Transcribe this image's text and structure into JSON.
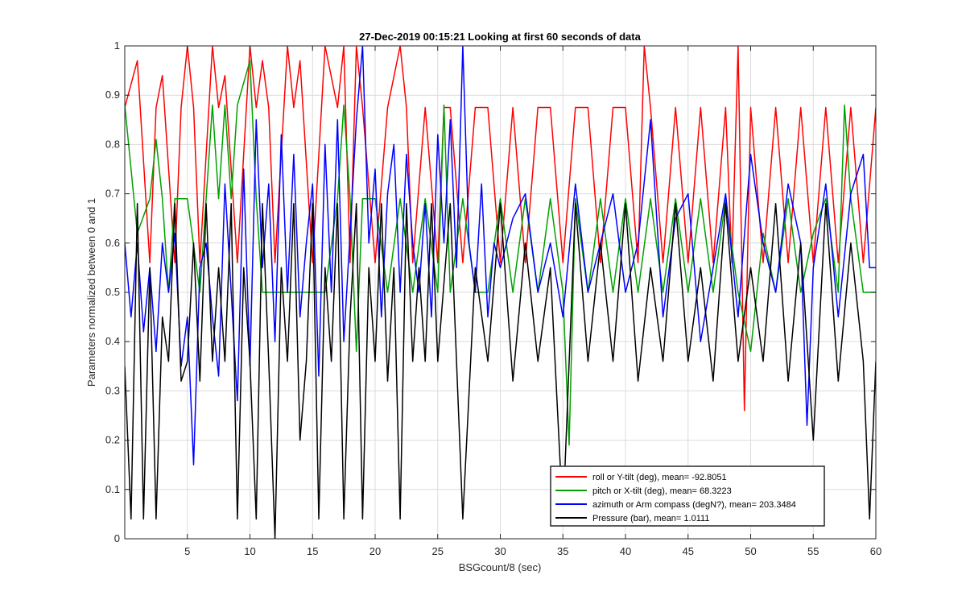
{
  "chart_data": {
    "type": "line",
    "title": "27-Dec-2019 00:15:21 Looking at first 60 seconds of data",
    "xlabel": "BSGcount/8 (sec)",
    "ylabel": "Parameters normalized between 0 and 1",
    "xlim": [
      0,
      60
    ],
    "ylim": [
      0,
      1
    ],
    "xticks": [
      5,
      10,
      15,
      20,
      25,
      30,
      35,
      40,
      45,
      50,
      55,
      60
    ],
    "yticks": [
      0,
      0.1,
      0.2,
      0.3,
      0.4,
      0.5,
      0.6,
      0.7,
      0.8,
      0.9,
      1
    ],
    "ytick_labels": [
      "0",
      "0.1",
      "0.2",
      "0.3",
      "0.4",
      "0.5",
      "0.6",
      "0.7",
      "0.8",
      "0.9",
      "1"
    ],
    "grid": true,
    "legend_position": "bottom-right",
    "series": [
      {
        "name": "roll or Y-tilt (deg), mean= -92.8051",
        "color": "#ff0000",
        "x": [
          0,
          1,
          2,
          2.5,
          3,
          4,
          4.5,
          5,
          5.5,
          6,
          7,
          7.5,
          8,
          9,
          10,
          10.5,
          11,
          11.5,
          12,
          13,
          13.5,
          14,
          15,
          16,
          17,
          17.5,
          18,
          18.5,
          19,
          20,
          21,
          22,
          22.5,
          23,
          24,
          25,
          25.5,
          26,
          27,
          28,
          29,
          30,
          31,
          32,
          33,
          34,
          35,
          36,
          37,
          38,
          39,
          40,
          41,
          41.5,
          42,
          43,
          44,
          45,
          46,
          47,
          48,
          48.5,
          49,
          49.5,
          50,
          51,
          52,
          53,
          54,
          55,
          56,
          57,
          58,
          59,
          60
        ],
        "values": [
          0.875,
          0.97,
          0.56,
          0.875,
          0.94,
          0.56,
          0.875,
          1.0,
          0.875,
          0.56,
          1.0,
          0.875,
          0.94,
          0.56,
          1.0,
          0.875,
          0.97,
          0.875,
          0.56,
          1.0,
          0.875,
          0.97,
          0.56,
          1.0,
          0.875,
          1.0,
          0.56,
          1.0,
          0.875,
          0.56,
          0.875,
          1.0,
          0.875,
          0.56,
          0.875,
          0.56,
          0.875,
          0.875,
          0.56,
          0.875,
          0.875,
          0.56,
          0.875,
          0.56,
          0.875,
          0.875,
          0.56,
          0.875,
          0.875,
          0.56,
          0.875,
          0.875,
          0.56,
          1.0,
          0.875,
          0.56,
          0.875,
          0.56,
          0.875,
          0.56,
          0.875,
          0.56,
          1.0,
          0.26,
          0.875,
          0.56,
          0.875,
          0.56,
          0.875,
          0.56,
          0.875,
          0.56,
          0.875,
          0.56,
          0.875
        ]
      },
      {
        "name": "pitch or X-tilt (deg), mean= 68.3223",
        "color": "#00a000",
        "x": [
          0,
          1,
          2,
          2.5,
          3,
          3.5,
          4,
          5,
          6,
          6.5,
          7,
          7.5,
          8,
          8.5,
          9,
          10,
          10.5,
          11,
          12,
          13,
          14,
          15,
          16,
          17,
          17.5,
          18,
          18.5,
          19,
          20,
          21,
          22,
          23,
          24,
          25,
          25.5,
          26,
          27,
          28,
          29,
          30,
          31,
          32,
          33,
          34,
          35,
          35.5,
          36,
          37,
          38,
          39,
          40,
          41,
          42,
          43,
          44,
          45,
          46,
          47,
          48,
          49,
          50,
          51,
          52,
          53,
          54,
          55,
          56,
          57,
          57.5,
          58,
          59,
          60
        ],
        "values": [
          0.88,
          0.62,
          0.69,
          0.81,
          0.69,
          0.5,
          0.69,
          0.69,
          0.5,
          0.69,
          0.88,
          0.69,
          0.88,
          0.69,
          0.88,
          0.97,
          0.69,
          0.5,
          0.5,
          0.5,
          0.5,
          0.5,
          0.5,
          0.69,
          0.88,
          0.69,
          0.38,
          0.69,
          0.69,
          0.5,
          0.69,
          0.5,
          0.69,
          0.5,
          0.88,
          0.5,
          0.69,
          0.5,
          0.5,
          0.69,
          0.5,
          0.69,
          0.5,
          0.69,
          0.5,
          0.19,
          0.69,
          0.5,
          0.69,
          0.5,
          0.69,
          0.5,
          0.69,
          0.5,
          0.69,
          0.5,
          0.69,
          0.5,
          0.69,
          0.5,
          0.38,
          0.62,
          0.5,
          0.69,
          0.5,
          0.62,
          0.69,
          0.5,
          0.88,
          0.69,
          0.5,
          0.5
        ]
      },
      {
        "name": "azimuth or Arm compass (degN?), mean= 203.3484",
        "color": "#0000ff",
        "x": [
          0,
          0.5,
          1,
          1.5,
          2,
          2.5,
          3,
          3.5,
          4,
          4.5,
          5,
          5.5,
          6,
          6.5,
          7,
          7.5,
          8,
          8.5,
          9,
          9.5,
          10,
          10.5,
          11,
          11.5,
          12,
          12.5,
          13,
          13.5,
          14,
          14.5,
          15,
          15.5,
          16,
          16.5,
          17,
          17.5,
          18,
          18.5,
          19,
          19.5,
          20,
          20.5,
          21,
          21.5,
          22,
          22.5,
          23,
          23.5,
          24,
          24.5,
          25,
          25.5,
          26,
          26.5,
          27,
          27.5,
          28,
          28.5,
          29,
          29.5,
          30,
          31,
          32,
          33,
          34,
          35,
          36,
          37,
          38,
          39,
          40,
          41,
          42,
          43,
          44,
          45,
          46,
          47,
          48,
          49,
          50,
          51,
          52,
          53,
          54,
          54.5,
          55,
          56,
          57,
          58,
          59,
          59.5,
          60
        ],
        "values": [
          0.6,
          0.45,
          0.6,
          0.42,
          0.55,
          0.38,
          0.6,
          0.5,
          0.62,
          0.35,
          0.45,
          0.15,
          0.55,
          0.6,
          0.45,
          0.33,
          0.72,
          0.5,
          0.28,
          0.75,
          0.35,
          0.85,
          0.55,
          0.72,
          0.4,
          0.82,
          0.5,
          0.78,
          0.45,
          0.6,
          0.72,
          0.33,
          0.8,
          0.5,
          0.85,
          0.4,
          0.62,
          0.85,
          1.0,
          0.6,
          0.75,
          0.45,
          0.7,
          0.8,
          0.5,
          0.78,
          0.6,
          0.5,
          0.68,
          0.45,
          0.82,
          0.6,
          0.85,
          0.55,
          1.0,
          0.6,
          0.5,
          0.72,
          0.45,
          0.6,
          0.55,
          0.65,
          0.7,
          0.5,
          0.6,
          0.45,
          0.72,
          0.5,
          0.6,
          0.7,
          0.5,
          0.6,
          0.85,
          0.45,
          0.65,
          0.7,
          0.4,
          0.55,
          0.7,
          0.45,
          0.78,
          0.6,
          0.5,
          0.72,
          0.6,
          0.23,
          0.55,
          0.72,
          0.45,
          0.7,
          0.78,
          0.55,
          0.55
        ]
      },
      {
        "name": "Pressure (bar), mean= 1.0111",
        "color": "#000000",
        "x": [
          0,
          0.5,
          1,
          1.5,
          2,
          2.5,
          3,
          3.5,
          4,
          4.5,
          5,
          5.5,
          6,
          6.5,
          7,
          7.5,
          8,
          8.5,
          9,
          9.5,
          10,
          10.5,
          11,
          11.5,
          12,
          12.5,
          13,
          13.5,
          14,
          14.5,
          15,
          15.5,
          16,
          16.5,
          17,
          17.5,
          18,
          18.5,
          19,
          19.5,
          20,
          20.5,
          21,
          21.5,
          22,
          22.5,
          23,
          23.5,
          24,
          24.5,
          25,
          26,
          27,
          28,
          29,
          30,
          31,
          32,
          33,
          34,
          35,
          36,
          37,
          38,
          39,
          40,
          41,
          42,
          43,
          44,
          45,
          46,
          47,
          48,
          49,
          50,
          51,
          52,
          53,
          54,
          55,
          56,
          57,
          58,
          59,
          59.5,
          60
        ],
        "values": [
          0.35,
          0.04,
          0.68,
          0.04,
          0.55,
          0.04,
          0.45,
          0.36,
          0.68,
          0.32,
          0.36,
          0.6,
          0.32,
          0.68,
          0.36,
          0.55,
          0.36,
          0.68,
          0.04,
          0.55,
          0.36,
          0.04,
          0.68,
          0.36,
          0.0,
          0.55,
          0.36,
          0.68,
          0.2,
          0.36,
          0.68,
          0.04,
          0.55,
          0.36,
          0.68,
          0.04,
          0.45,
          0.68,
          0.04,
          0.55,
          0.36,
          0.68,
          0.32,
          0.55,
          0.04,
          0.68,
          0.36,
          0.55,
          0.36,
          0.68,
          0.36,
          0.68,
          0.04,
          0.55,
          0.36,
          0.68,
          0.32,
          0.6,
          0.36,
          0.55,
          0.04,
          0.68,
          0.36,
          0.6,
          0.36,
          0.68,
          0.32,
          0.55,
          0.36,
          0.68,
          0.36,
          0.55,
          0.32,
          0.68,
          0.36,
          0.55,
          0.36,
          0.68,
          0.32,
          0.6,
          0.2,
          0.68,
          0.32,
          0.6,
          0.36,
          0.04,
          0.36
        ]
      }
    ]
  }
}
